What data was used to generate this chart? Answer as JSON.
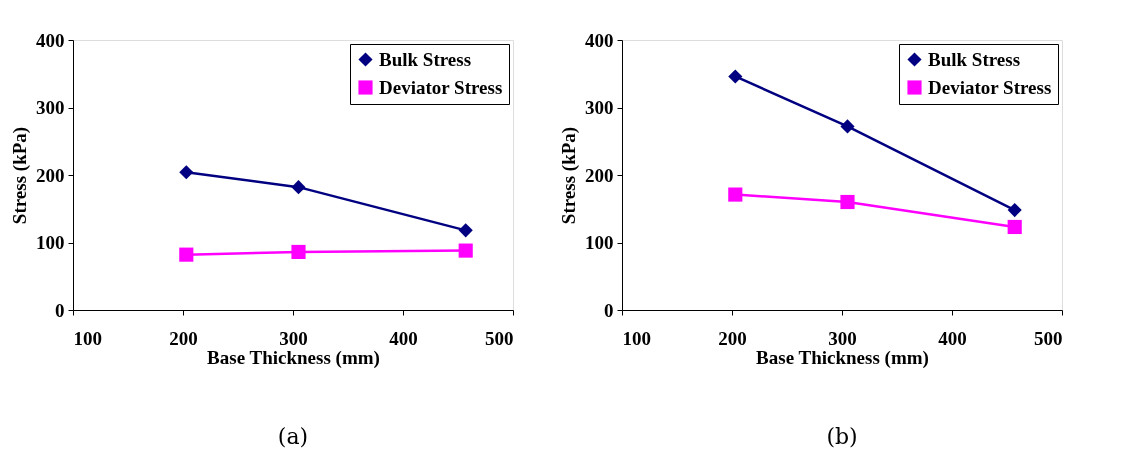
{
  "chart_data": [
    {
      "type": "line",
      "xlabel": "Base Thickness (mm)",
      "ylabel": "Stress (kPa)",
      "x": [
        203,
        305,
        457
      ],
      "xlim": [
        100,
        500
      ],
      "xticks": [
        100,
        200,
        300,
        400,
        500
      ],
      "ylim": [
        0,
        400
      ],
      "yticks": [
        0,
        100,
        200,
        300,
        400
      ],
      "grid": false,
      "legend": "top right",
      "line_style": "solid",
      "annotations": [
        "(a)"
      ],
      "series": [
        {
          "name": "Bulk Stress",
          "color": "#000080",
          "marker": "diamond",
          "values": [
            204,
            182,
            118
          ]
        },
        {
          "name": "Deviator Stress",
          "color": "#ff00ff",
          "marker": "square",
          "values": [
            82,
            86,
            88
          ]
        }
      ]
    },
    {
      "type": "line",
      "xlabel": "Base Thickness (mm)",
      "ylabel": "Stress (kPa)",
      "x": [
        203,
        305,
        457
      ],
      "xlim": [
        100,
        500
      ],
      "xticks": [
        100,
        200,
        300,
        400,
        500
      ],
      "ylim": [
        0,
        400
      ],
      "yticks": [
        0,
        100,
        200,
        300,
        400
      ],
      "grid": false,
      "legend": "top right",
      "line_style": "solid",
      "annotations": [
        "(b)"
      ],
      "series": [
        {
          "name": "Bulk Stress",
          "color": "#000080",
          "marker": "diamond",
          "values": [
            346,
            272,
            148
          ]
        },
        {
          "name": "Deviator Stress",
          "color": "#ff00ff",
          "marker": "square",
          "values": [
            171,
            160,
            123
          ]
        }
      ]
    }
  ]
}
